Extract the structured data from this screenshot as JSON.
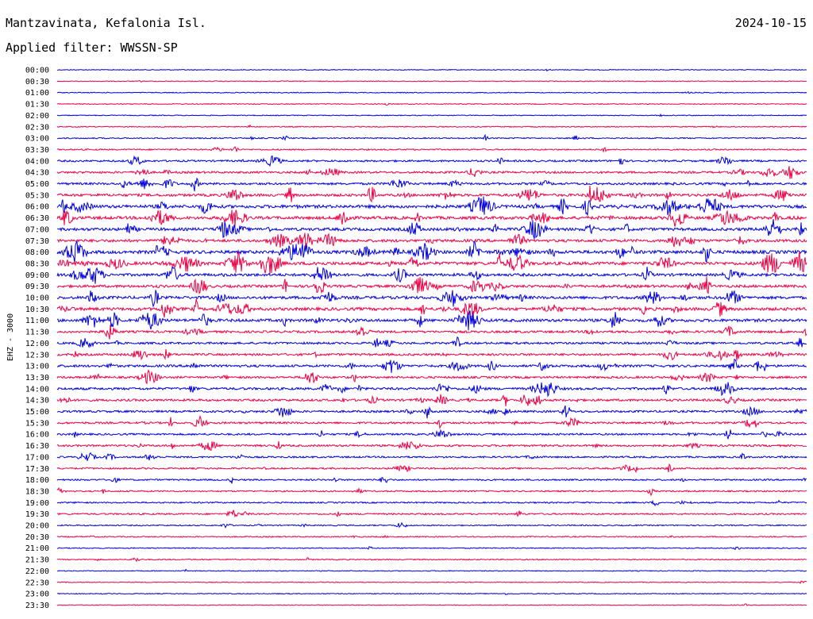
{
  "header": {
    "station": "Mantzavinata, Kefalonia Isl.",
    "date": "2024-10-15",
    "filter": "Applied filter: WWSSN-SP"
  },
  "chart_data": {
    "type": "line",
    "ylabel": "EHZ - 3000",
    "xlabel": "",
    "title": "Mantzavinata, Kefalonia Isl.",
    "colors": {
      "even": "#0000dd",
      "odd": "#ee0044"
    },
    "grid": false,
    "rows": [
      {
        "label": "00:00",
        "activity": 0.05
      },
      {
        "label": "00:30",
        "activity": 0.05
      },
      {
        "label": "01:00",
        "activity": 0.08
      },
      {
        "label": "01:30",
        "activity": 0.08
      },
      {
        "label": "02:00",
        "activity": 0.08
      },
      {
        "label": "02:30",
        "activity": 0.12
      },
      {
        "label": "03:00",
        "activity": 0.2
      },
      {
        "label": "03:30",
        "activity": 0.25
      },
      {
        "label": "04:00",
        "activity": 0.45
      },
      {
        "label": "04:30",
        "activity": 0.55
      },
      {
        "label": "05:00",
        "activity": 0.6
      },
      {
        "label": "05:30",
        "activity": 0.75
      },
      {
        "label": "06:00",
        "activity": 0.95
      },
      {
        "label": "06:30",
        "activity": 0.9
      },
      {
        "label": "07:00",
        "activity": 0.85
      },
      {
        "label": "07:30",
        "activity": 0.8
      },
      {
        "label": "08:00",
        "activity": 1.0
      },
      {
        "label": "08:30",
        "activity": 0.95
      },
      {
        "label": "09:00",
        "activity": 0.8
      },
      {
        "label": "09:30",
        "activity": 0.75
      },
      {
        "label": "10:00",
        "activity": 0.85
      },
      {
        "label": "10:30",
        "activity": 0.9
      },
      {
        "label": "11:00",
        "activity": 0.85
      },
      {
        "label": "11:30",
        "activity": 0.6
      },
      {
        "label": "12:00",
        "activity": 0.55
      },
      {
        "label": "12:30",
        "activity": 0.6
      },
      {
        "label": "13:00",
        "activity": 0.65
      },
      {
        "label": "13:30",
        "activity": 0.55
      },
      {
        "label": "14:00",
        "activity": 0.65
      },
      {
        "label": "14:30",
        "activity": 0.6
      },
      {
        "label": "15:00",
        "activity": 0.55
      },
      {
        "label": "15:30",
        "activity": 0.5
      },
      {
        "label": "16:00",
        "activity": 0.45
      },
      {
        "label": "16:30",
        "activity": 0.5
      },
      {
        "label": "17:00",
        "activity": 0.4
      },
      {
        "label": "17:30",
        "activity": 0.35
      },
      {
        "label": "18:00",
        "activity": 0.35
      },
      {
        "label": "18:30",
        "activity": 0.3
      },
      {
        "label": "19:00",
        "activity": 0.3
      },
      {
        "label": "19:30",
        "activity": 0.35
      },
      {
        "label": "20:00",
        "activity": 0.2
      },
      {
        "label": "20:30",
        "activity": 0.2
      },
      {
        "label": "21:00",
        "activity": 0.12
      },
      {
        "label": "21:30",
        "activity": 0.15
      },
      {
        "label": "22:00",
        "activity": 0.08
      },
      {
        "label": "22:30",
        "activity": 0.05
      },
      {
        "label": "23:00",
        "activity": 0.08
      },
      {
        "label": "23:30",
        "activity": 0.05
      }
    ]
  }
}
